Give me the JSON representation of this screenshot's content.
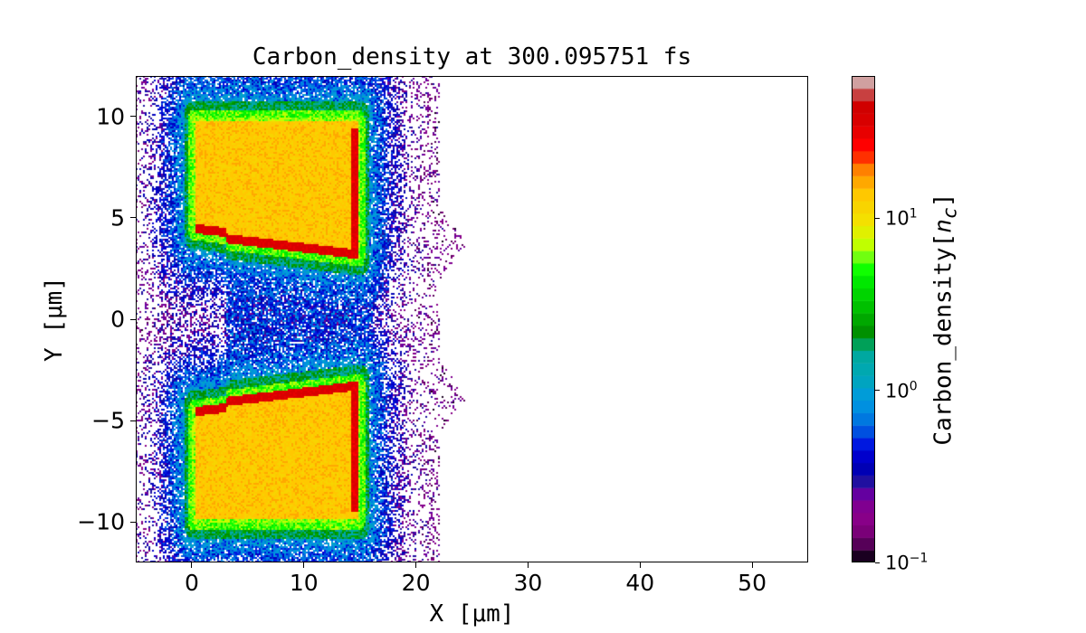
{
  "chart_data": {
    "type": "heatmap",
    "title": "Carbon_density at 300.095751 fs",
    "xlabel": "X  [μm]",
    "ylabel": "Y  [μm]",
    "xlim": [
      -5,
      55
    ],
    "ylim": [
      -12,
      12
    ],
    "xticks": [
      0,
      10,
      20,
      30,
      40,
      50
    ],
    "xtick_labels": [
      "0",
      "10",
      "20",
      "30",
      "40",
      "50"
    ],
    "yticks": [
      10,
      5,
      0,
      -5,
      -10
    ],
    "ytick_labels": [
      "10",
      "5",
      "0",
      "−5",
      "−10"
    ],
    "colorbar": {
      "label": "Carbon_density[n_c]",
      "label_main": "Carbon_density[",
      "label_var": "n",
      "label_sub": "c",
      "label_end": "]",
      "scale": "log",
      "range": [
        0.1,
        67
      ],
      "ticks": [
        {
          "value": 10,
          "base": "10",
          "exp": "1"
        },
        {
          "value": 1,
          "base": "10",
          "exp": "0"
        },
        {
          "value": 0.1,
          "base": "10",
          "exp": "−1"
        }
      ],
      "palette": [
        "#1a0020",
        "#560058",
        "#7a0078",
        "#880088",
        "#800090",
        "#6400a0",
        "#2010a0",
        "#0000b4",
        "#0000cc",
        "#0018e0",
        "#0050e0",
        "#0078e0",
        "#0090e0",
        "#009cd8",
        "#00a4c0",
        "#00a8b0",
        "#00a8a0",
        "#00a058",
        "#009000",
        "#00a800",
        "#00c000",
        "#00d400",
        "#00e800",
        "#10ff00",
        "#70ff10",
        "#c0ff00",
        "#e0f000",
        "#f4e000",
        "#f8d400",
        "#ffc800",
        "#ffa800",
        "#ff8000",
        "#ff3000",
        "#ff0000",
        "#e80000",
        "#d80000",
        "#d00000",
        "#c84040",
        "#d0a0a0"
      ]
    },
    "targets": [
      {
        "name": "upper block",
        "x": [
          0,
          15
        ],
        "y": [
          3.3,
          10
        ],
        "density": 12,
        "edge_density": 35
      },
      {
        "name": "lower block",
        "x": [
          0,
          15
        ],
        "y": [
          -10,
          -3.3
        ],
        "density": 12,
        "edge_density": 35
      }
    ],
    "plasma_extent_x": [
      -5,
      25
    ]
  }
}
